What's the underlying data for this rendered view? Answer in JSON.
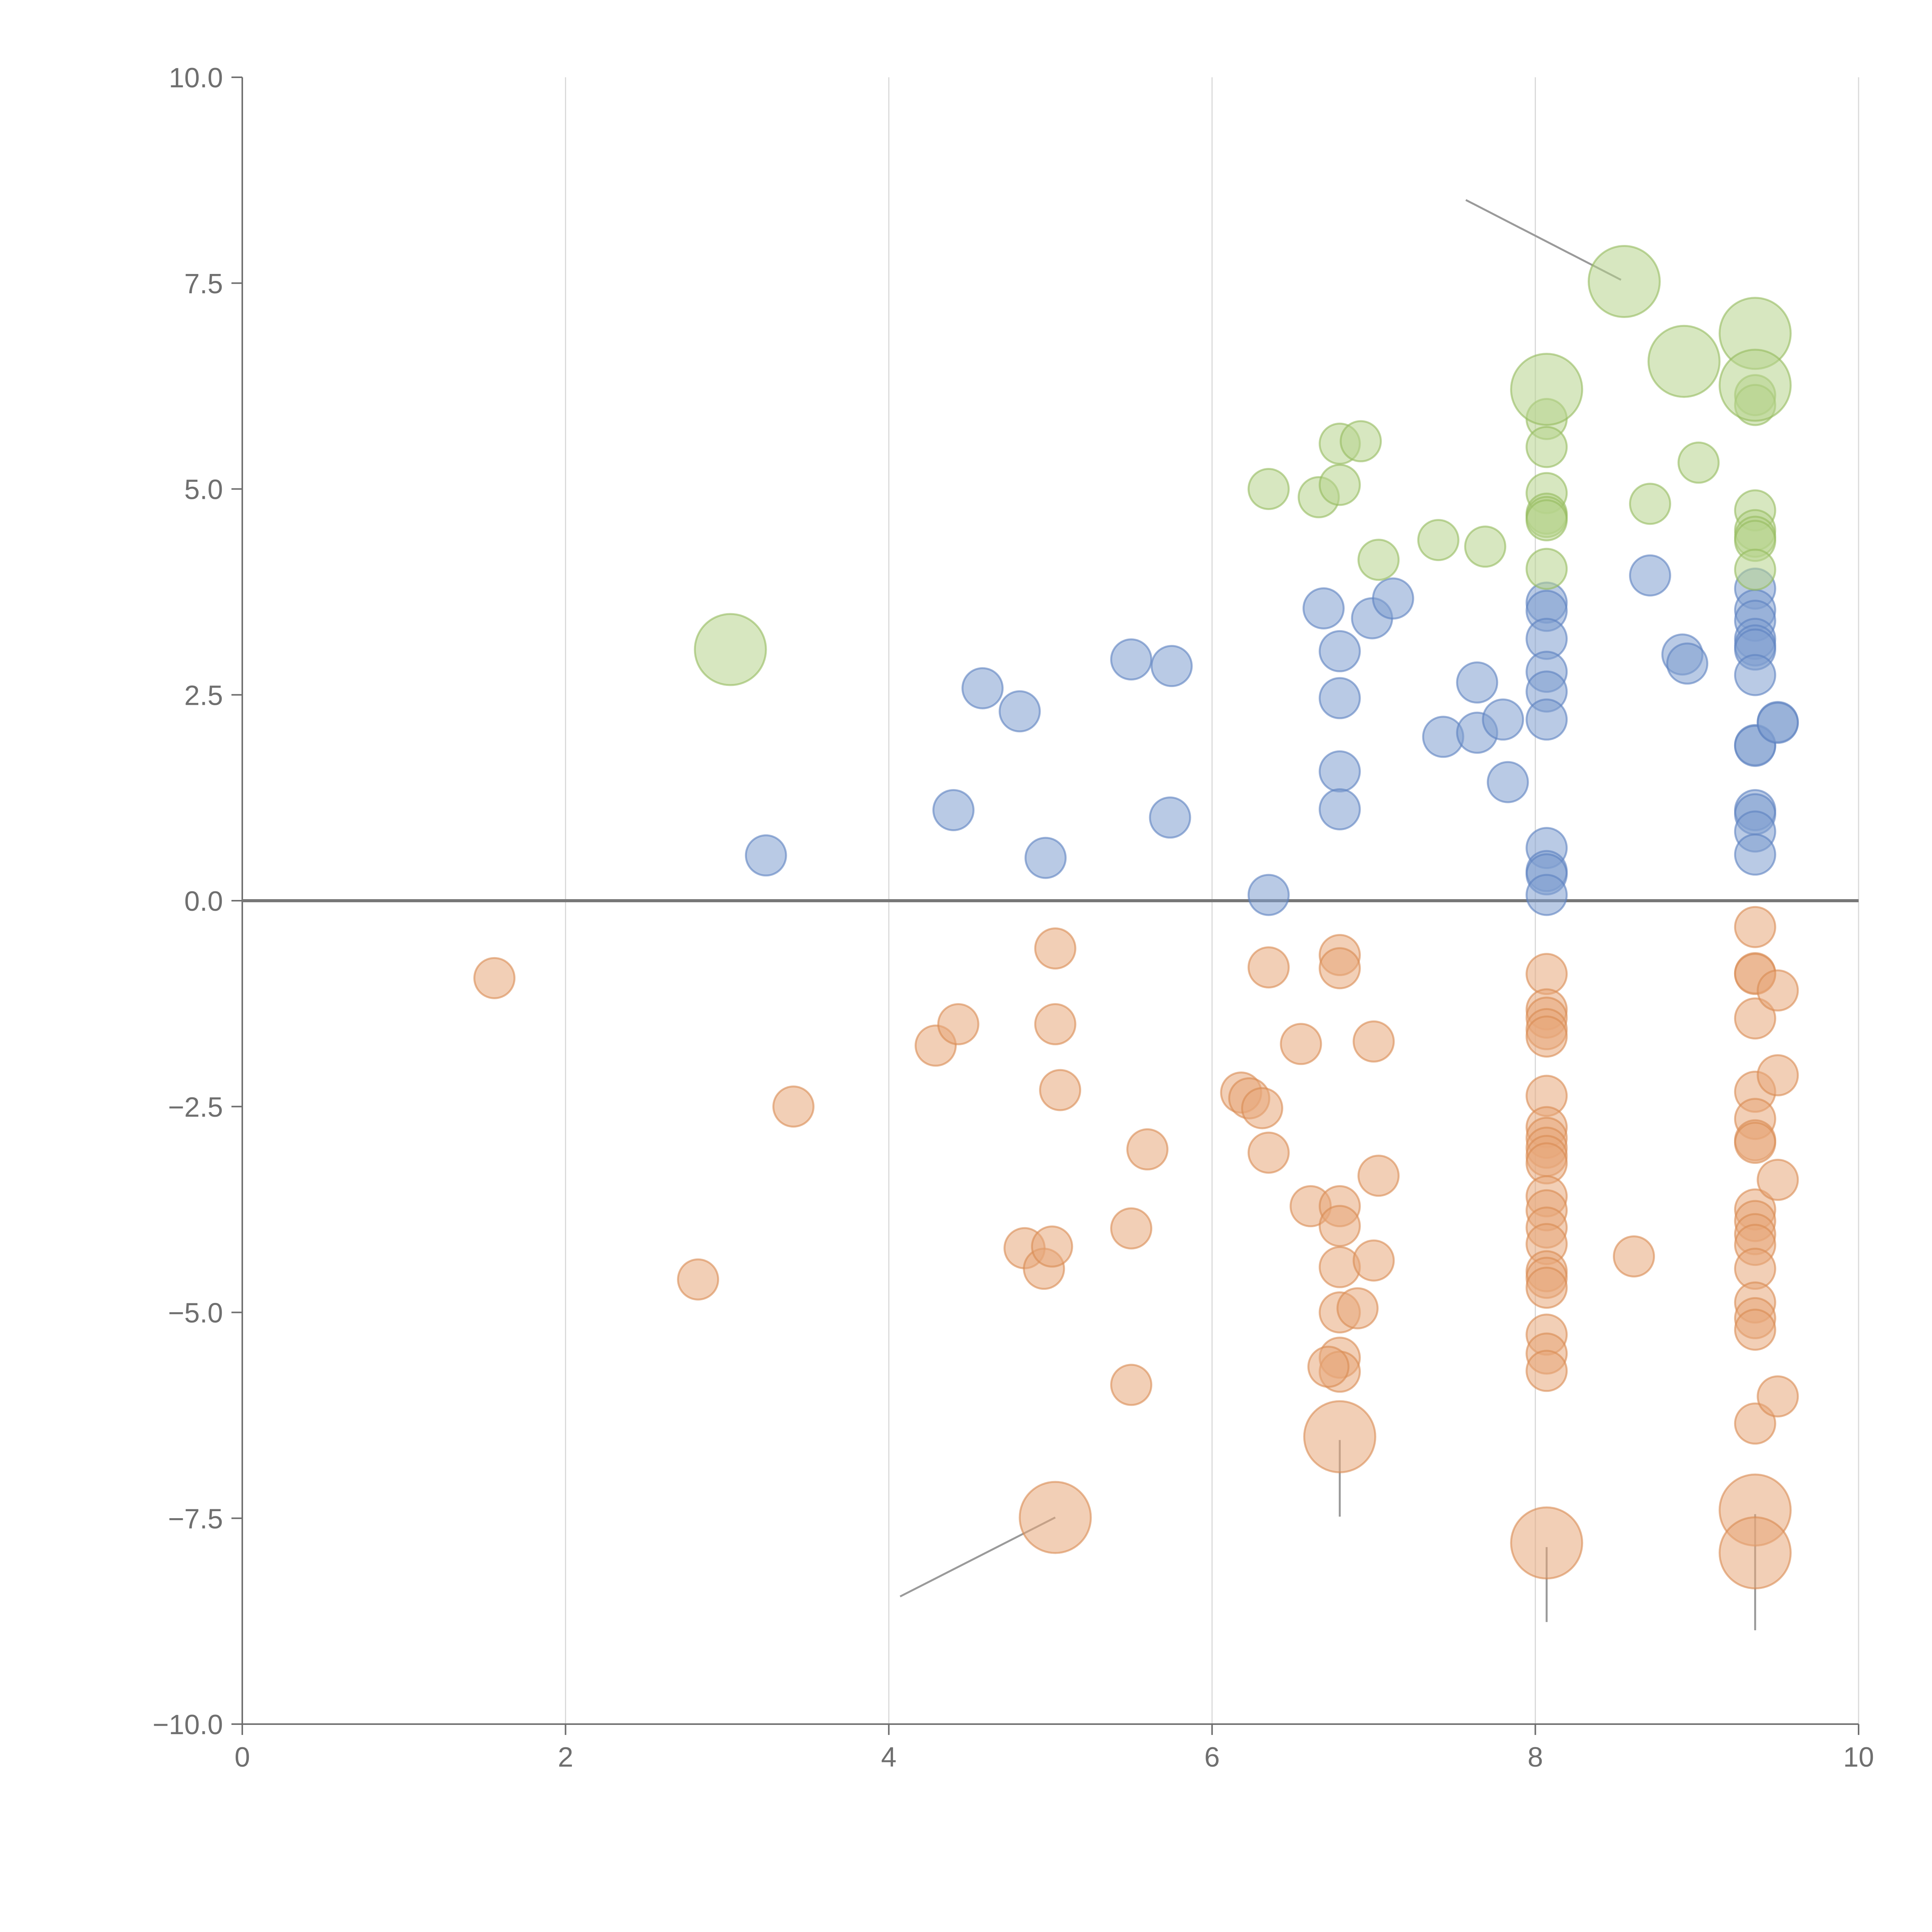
{
  "colors": {
    "positive": "#7f9fd0",
    "negative": "#e8a77a",
    "high": "#b7d48c",
    "positive_stroke": "#5b80c0",
    "negative_stroke": "#d98a52",
    "high_stroke": "#94bb5e"
  },
  "chart_data": {
    "type": "scatter",
    "title": "",
    "xlabel": "",
    "ylabel": "",
    "xlim": [
      0,
      10
    ],
    "ylim": [
      -10,
      10
    ],
    "x_ticks": [
      0,
      2,
      4,
      6,
      8,
      10
    ],
    "y_ticks": [
      -10.0,
      -7.5,
      -5.0,
      -2.5,
      0.0,
      2.5,
      5.0,
      7.5,
      10.0
    ],
    "x_tick_labels": [
      "0",
      "2",
      "4",
      "6",
      "8",
      "10"
    ],
    "y_tick_labels": [
      "−10.0",
      "−7.5",
      "−5.0",
      "−2.5",
      "0.0",
      "2.5",
      "5.0",
      "7.5",
      "10.0"
    ],
    "grid": "vertical",
    "reference_line_y": 0,
    "marker_size_unit": "relative radius (1 = small bubble)",
    "series": [
      {
        "name": "blue",
        "color_key": "positive",
        "points": [
          {
            "x": 3.24,
            "y": 0.55,
            "size": 1
          },
          {
            "x": 4.4,
            "y": 1.1,
            "size": 1
          },
          {
            "x": 4.58,
            "y": 2.58,
            "size": 1
          },
          {
            "x": 4.81,
            "y": 2.3,
            "size": 1
          },
          {
            "x": 4.97,
            "y": 0.52,
            "size": 1
          },
          {
            "x": 5.5,
            "y": 2.93,
            "size": 1
          },
          {
            "x": 5.75,
            "y": 2.85,
            "size": 1
          },
          {
            "x": 5.74,
            "y": 1.01,
            "size": 1
          },
          {
            "x": 6.35,
            "y": 0.07,
            "size": 1
          },
          {
            "x": 6.69,
            "y": 3.55,
            "size": 1
          },
          {
            "x": 6.79,
            "y": 3.03,
            "size": 1
          },
          {
            "x": 6.79,
            "y": 2.46,
            "size": 1
          },
          {
            "x": 6.79,
            "y": 1.57,
            "size": 1
          },
          {
            "x": 6.79,
            "y": 1.11,
            "size": 1
          },
          {
            "x": 6.99,
            "y": 3.43,
            "size": 1
          },
          {
            "x": 7.12,
            "y": 3.67,
            "size": 1
          },
          {
            "x": 7.43,
            "y": 1.99,
            "size": 1
          },
          {
            "x": 7.64,
            "y": 2.65,
            "size": 1
          },
          {
            "x": 7.64,
            "y": 2.04,
            "size": 1
          },
          {
            "x": 7.8,
            "y": 2.2,
            "size": 1
          },
          {
            "x": 7.83,
            "y": 1.44,
            "size": 1
          },
          {
            "x": 8.07,
            "y": 3.62,
            "size": 1
          },
          {
            "x": 8.07,
            "y": 3.52,
            "size": 1
          },
          {
            "x": 8.07,
            "y": 3.18,
            "size": 1
          },
          {
            "x": 8.07,
            "y": 2.78,
            "size": 1
          },
          {
            "x": 8.07,
            "y": 2.54,
            "size": 1
          },
          {
            "x": 8.07,
            "y": 2.2,
            "size": 1
          },
          {
            "x": 8.07,
            "y": 0.64,
            "size": 1
          },
          {
            "x": 8.07,
            "y": 0.36,
            "size": 1
          },
          {
            "x": 8.07,
            "y": 0.32,
            "size": 1
          },
          {
            "x": 8.07,
            "y": 0.07,
            "size": 1
          },
          {
            "x": 8.71,
            "y": 3.95,
            "size": 1
          },
          {
            "x": 8.91,
            "y": 2.99,
            "size": 1
          },
          {
            "x": 8.94,
            "y": 2.88,
            "size": 1
          },
          {
            "x": 9.36,
            "y": 3.79,
            "size": 1
          },
          {
            "x": 9.36,
            "y": 3.53,
            "size": 1
          },
          {
            "x": 9.36,
            "y": 3.4,
            "size": 1
          },
          {
            "x": 9.36,
            "y": 3.18,
            "size": 1
          },
          {
            "x": 9.36,
            "y": 3.1,
            "size": 1
          },
          {
            "x": 9.36,
            "y": 3.05,
            "size": 1
          },
          {
            "x": 9.36,
            "y": 2.74,
            "size": 1
          },
          {
            "x": 9.36,
            "y": 1.89,
            "size": 1
          },
          {
            "x": 9.36,
            "y": 1.88,
            "size": 1
          },
          {
            "x": 9.36,
            "y": 1.1,
            "size": 1
          },
          {
            "x": 9.36,
            "y": 1.05,
            "size": 1
          },
          {
            "x": 9.36,
            "y": 0.84,
            "size": 1
          },
          {
            "x": 9.36,
            "y": 0.56,
            "size": 1
          },
          {
            "x": 9.5,
            "y": 2.17,
            "size": 1
          },
          {
            "x": 9.5,
            "y": 2.16,
            "size": 1
          }
        ]
      },
      {
        "name": "orange",
        "color_key": "negative",
        "points": [
          {
            "x": 1.56,
            "y": -0.94,
            "size": 1
          },
          {
            "x": 2.82,
            "y": -4.6,
            "size": 1
          },
          {
            "x": 3.41,
            "y": -2.5,
            "size": 1
          },
          {
            "x": 4.29,
            "y": -1.76,
            "size": 1
          },
          {
            "x": 4.43,
            "y": -1.5,
            "size": 1
          },
          {
            "x": 4.84,
            "y": -4.22,
            "size": 1
          },
          {
            "x": 4.96,
            "y": -4.47,
            "size": 1
          },
          {
            "x": 5.03,
            "y": -0.58,
            "size": 1
          },
          {
            "x": 5.03,
            "y": -1.5,
            "size": 1
          },
          {
            "x": 5.01,
            "y": -4.2,
            "size": 1
          },
          {
            "x": 5.06,
            "y": -2.3,
            "size": 1
          },
          {
            "x": 5.5,
            "y": -3.98,
            "size": 1
          },
          {
            "x": 5.5,
            "y": -5.88,
            "size": 1
          },
          {
            "x": 5.6,
            "y": -3.02,
            "size": 1
          },
          {
            "x": 6.18,
            "y": -2.33,
            "size": 1
          },
          {
            "x": 6.23,
            "y": -2.4,
            "size": 1
          },
          {
            "x": 6.31,
            "y": -2.52,
            "size": 1
          },
          {
            "x": 6.35,
            "y": -0.81,
            "size": 1
          },
          {
            "x": 6.35,
            "y": -3.06,
            "size": 1
          },
          {
            "x": 6.55,
            "y": -1.74,
            "size": 1
          },
          {
            "x": 6.61,
            "y": -3.71,
            "size": 1
          },
          {
            "x": 6.79,
            "y": -0.66,
            "size": 1
          },
          {
            "x": 6.79,
            "y": -0.82,
            "size": 1
          },
          {
            "x": 6.79,
            "y": -3.71,
            "size": 1
          },
          {
            "x": 6.79,
            "y": -3.95,
            "size": 1
          },
          {
            "x": 6.79,
            "y": -4.45,
            "size": 1
          },
          {
            "x": 6.79,
            "y": -5.0,
            "size": 1
          },
          {
            "x": 6.79,
            "y": -5.55,
            "size": 1
          },
          {
            "x": 6.79,
            "y": -5.72,
            "size": 1
          },
          {
            "x": 6.72,
            "y": -5.66,
            "size": 1
          },
          {
            "x": 6.9,
            "y": -4.95,
            "size": 1
          },
          {
            "x": 7.0,
            "y": -1.71,
            "size": 1
          },
          {
            "x": 7.0,
            "y": -4.37,
            "size": 1
          },
          {
            "x": 7.03,
            "y": -3.34,
            "size": 1
          },
          {
            "x": 8.07,
            "y": -0.89,
            "size": 1
          },
          {
            "x": 8.07,
            "y": -1.32,
            "size": 1
          },
          {
            "x": 8.07,
            "y": -1.42,
            "size": 1
          },
          {
            "x": 8.07,
            "y": -1.56,
            "size": 1
          },
          {
            "x": 8.07,
            "y": -1.65,
            "size": 1
          },
          {
            "x": 8.07,
            "y": -2.37,
            "size": 1
          },
          {
            "x": 8.07,
            "y": -2.75,
            "size": 1
          },
          {
            "x": 8.07,
            "y": -2.88,
            "size": 1
          },
          {
            "x": 8.07,
            "y": -3.0,
            "size": 1
          },
          {
            "x": 8.07,
            "y": -3.1,
            "size": 1
          },
          {
            "x": 8.07,
            "y": -3.19,
            "size": 1
          },
          {
            "x": 8.07,
            "y": -3.59,
            "size": 1
          },
          {
            "x": 8.07,
            "y": -3.76,
            "size": 1
          },
          {
            "x": 8.07,
            "y": -3.97,
            "size": 1
          },
          {
            "x": 8.07,
            "y": -4.17,
            "size": 1
          },
          {
            "x": 8.07,
            "y": -4.5,
            "size": 1
          },
          {
            "x": 8.07,
            "y": -4.58,
            "size": 1
          },
          {
            "x": 8.07,
            "y": -4.7,
            "size": 1
          },
          {
            "x": 8.07,
            "y": -5.27,
            "size": 1
          },
          {
            "x": 8.07,
            "y": -5.5,
            "size": 1
          },
          {
            "x": 8.07,
            "y": -5.71,
            "size": 1
          },
          {
            "x": 8.61,
            "y": -4.32,
            "size": 1
          },
          {
            "x": 9.36,
            "y": -0.32,
            "size": 1
          },
          {
            "x": 9.36,
            "y": -0.88,
            "size": 1
          },
          {
            "x": 9.36,
            "y": -0.89,
            "size": 1
          },
          {
            "x": 9.36,
            "y": -1.43,
            "size": 1
          },
          {
            "x": 9.36,
            "y": -2.32,
            "size": 1
          },
          {
            "x": 9.36,
            "y": -2.65,
            "size": 1
          },
          {
            "x": 9.36,
            "y": -2.91,
            "size": 1
          },
          {
            "x": 9.36,
            "y": -2.94,
            "size": 1
          },
          {
            "x": 9.36,
            "y": -3.75,
            "size": 1
          },
          {
            "x": 9.36,
            "y": -3.89,
            "size": 1
          },
          {
            "x": 9.36,
            "y": -4.05,
            "size": 1
          },
          {
            "x": 9.36,
            "y": -4.18,
            "size": 1
          },
          {
            "x": 9.36,
            "y": -4.47,
            "size": 1
          },
          {
            "x": 9.36,
            "y": -4.88,
            "size": 1
          },
          {
            "x": 9.36,
            "y": -5.07,
            "size": 1
          },
          {
            "x": 9.36,
            "y": -5.21,
            "size": 1
          },
          {
            "x": 9.36,
            "y": -6.35,
            "size": 1
          },
          {
            "x": 9.5,
            "y": -1.09,
            "size": 1
          },
          {
            "x": 9.5,
            "y": -2.12,
            "size": 1
          },
          {
            "x": 9.5,
            "y": -3.39,
            "size": 1
          },
          {
            "x": 9.5,
            "y": -6.02,
            "size": 1
          },
          {
            "x": 5.03,
            "y": -7.49,
            "size": 2
          },
          {
            "x": 6.79,
            "y": -6.51,
            "size": 2
          },
          {
            "x": 8.07,
            "y": -7.8,
            "size": 2
          },
          {
            "x": 9.36,
            "y": -7.4,
            "size": 2
          },
          {
            "x": 9.36,
            "y": -7.92,
            "size": 2
          }
        ]
      },
      {
        "name": "green",
        "color_key": "high",
        "points": [
          {
            "x": 6.35,
            "y": 5.0,
            "size": 1
          },
          {
            "x": 6.66,
            "y": 4.9,
            "size": 1
          },
          {
            "x": 6.79,
            "y": 5.55,
            "size": 1
          },
          {
            "x": 6.79,
            "y": 5.05,
            "size": 1
          },
          {
            "x": 6.92,
            "y": 5.58,
            "size": 1
          },
          {
            "x": 7.03,
            "y": 4.14,
            "size": 1
          },
          {
            "x": 7.4,
            "y": 4.38,
            "size": 1
          },
          {
            "x": 7.69,
            "y": 4.3,
            "size": 1
          },
          {
            "x": 8.07,
            "y": 5.85,
            "size": 1
          },
          {
            "x": 8.07,
            "y": 5.51,
            "size": 1
          },
          {
            "x": 8.07,
            "y": 4.95,
            "size": 1
          },
          {
            "x": 8.07,
            "y": 4.7,
            "size": 1
          },
          {
            "x": 8.07,
            "y": 4.66,
            "size": 1
          },
          {
            "x": 8.07,
            "y": 4.62,
            "size": 1
          },
          {
            "x": 8.07,
            "y": 4.03,
            "size": 1
          },
          {
            "x": 8.71,
            "y": 4.82,
            "size": 1
          },
          {
            "x": 9.01,
            "y": 5.32,
            "size": 1
          },
          {
            "x": 9.36,
            "y": 6.14,
            "size": 1
          },
          {
            "x": 9.36,
            "y": 6.02,
            "size": 1
          },
          {
            "x": 9.36,
            "y": 4.74,
            "size": 1
          },
          {
            "x": 9.36,
            "y": 4.5,
            "size": 1
          },
          {
            "x": 9.36,
            "y": 4.42,
            "size": 1
          },
          {
            "x": 9.36,
            "y": 4.37,
            "size": 1
          },
          {
            "x": 9.36,
            "y": 4.02,
            "size": 1
          },
          {
            "x": 3.02,
            "y": 3.05,
            "size": 2
          },
          {
            "x": 8.07,
            "y": 6.21,
            "size": 2
          },
          {
            "x": 8.55,
            "y": 7.52,
            "size": 2
          },
          {
            "x": 8.92,
            "y": 6.55,
            "size": 2
          },
          {
            "x": 9.36,
            "y": 6.89,
            "size": 2
          },
          {
            "x": 9.36,
            "y": 6.26,
            "size": 2
          }
        ]
      }
    ],
    "annotation_leaders": [
      {
        "from": [
          4.07,
          -8.45
        ],
        "to": [
          5.03,
          -7.49
        ]
      },
      {
        "from": [
          6.79,
          -7.48
        ],
        "to": [
          6.79,
          -6.55
        ]
      },
      {
        "from": [
          8.07,
          -8.76
        ],
        "to": [
          8.07,
          -7.85
        ]
      },
      {
        "from": [
          9.36,
          -8.86
        ],
        "to": [
          9.36,
          -7.45
        ]
      },
      {
        "from": [
          7.57,
          8.51
        ],
        "to": [
          8.53,
          7.54
        ]
      }
    ]
  }
}
